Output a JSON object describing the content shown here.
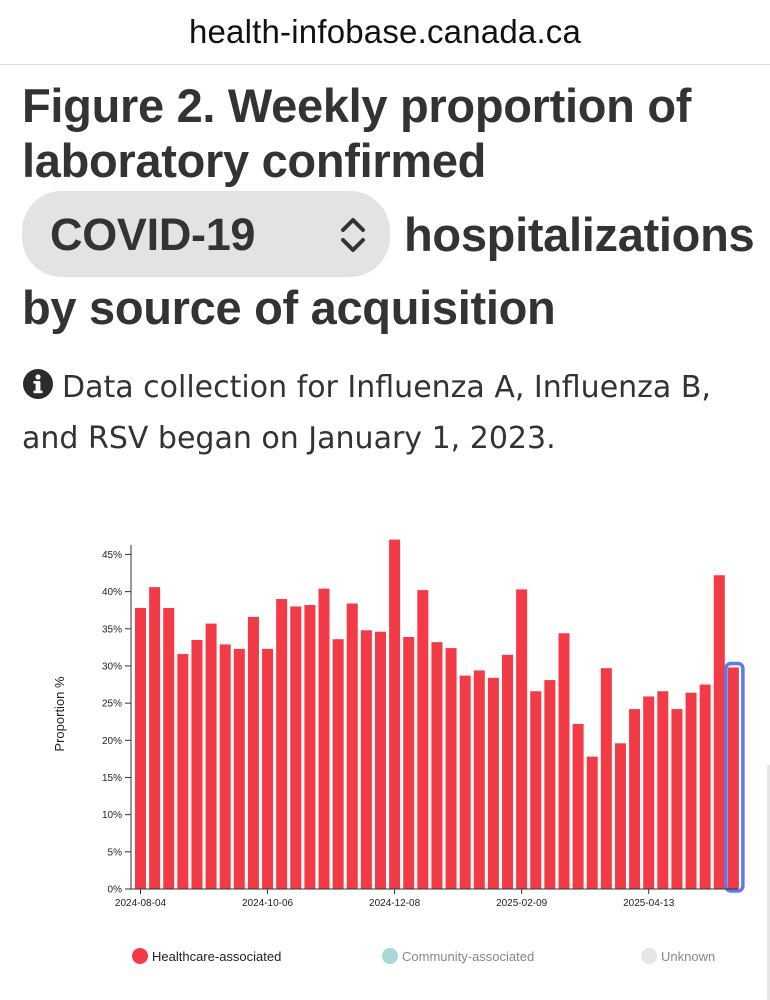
{
  "browser": {
    "url": "health-infobase.canada.ca"
  },
  "header": {
    "title_line1": "Figure 2. Weekly proportion of",
    "title_line2": "laboratory confirmed",
    "selector_value": "COVID-19",
    "title_after_selector": "hospitalizations",
    "title_line4": "by source of acquisition"
  },
  "note": {
    "text": "Data collection for Influenza A, Influenza B, and RSV began on January 1, 2023."
  },
  "colors": {
    "healthcare": "#f23b46",
    "community": "#a6d7d9",
    "unknown": "#e6e6e6",
    "highlight": "#5b7be8"
  },
  "icons": {
    "info": "info-circle-icon",
    "selector": "chevron-up-down-icon"
  },
  "legend": [
    {
      "label": "Healthcare-associated",
      "color": "#f23b46"
    },
    {
      "label": "Community-associated",
      "color": "#a6d7d9"
    },
    {
      "label": "Unknown",
      "color": "#e6e6e6"
    }
  ],
  "chart_data": {
    "type": "bar",
    "ylabel": "Proportion %",
    "xlabel": "",
    "ylim": [
      0,
      46
    ],
    "y_ticks": [
      "0%",
      "5%",
      "10%",
      "15%",
      "20%",
      "25%",
      "30%",
      "35%",
      "40%",
      "45%"
    ],
    "x_tick_labels": [
      "2024-08-04",
      "2024-10-06",
      "2024-12-08",
      "2025-02-09",
      "2025-04-13"
    ],
    "x_tick_indices": [
      0,
      9,
      18,
      27,
      36
    ],
    "grid": false,
    "legend_position": "bottom",
    "highlighted_index": 42,
    "series": [
      {
        "name": "Healthcare-associated",
        "values": [
          37.8,
          40.6,
          37.8,
          31.6,
          33.5,
          35.7,
          32.9,
          32.3,
          36.6,
          32.3,
          39.0,
          38.0,
          38.2,
          40.4,
          33.6,
          38.4,
          34.8,
          34.6,
          47.0,
          33.9,
          40.2,
          33.2,
          32.4,
          28.7,
          29.4,
          28.4,
          31.5,
          40.3,
          26.6,
          28.1,
          34.4,
          22.2,
          17.8,
          29.7,
          19.6,
          24.2,
          25.9,
          26.6,
          24.2,
          26.4,
          27.5,
          42.2,
          29.8
        ]
      }
    ]
  }
}
